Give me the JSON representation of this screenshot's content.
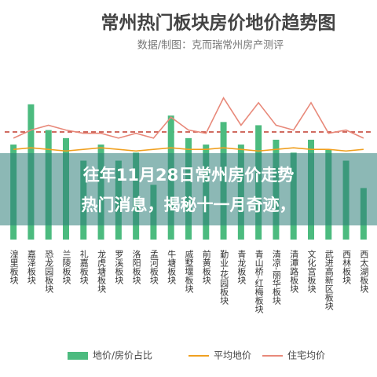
{
  "chart_data": {
    "type": "bar",
    "title": "常州热门板块房价地价趋势图",
    "subtitle": "数据/制图：克而瑞常州房产测评",
    "overlay_lines": [
      "往年11月28日常州房价走势",
      "热门消息，揭秘十一月奇迹，"
    ],
    "categories": [
      "湟里板块",
      "嘉泽板块",
      "恐龙园板块",
      "兰陵板块",
      "礼嘉板块",
      "龙虎塘板块",
      "罗溪板块",
      "洛阳板块",
      "孟河板块",
      "牛塘板块",
      "戚墅堰板块",
      "前黄板块",
      "勤业-花园板块",
      "青龙板块",
      "青山桥-红梅板块",
      "清凉-丽华板块",
      "清潭路板块",
      "文化宫板块",
      "武进高新区板块",
      "西林板块",
      "西太湖板块"
    ],
    "series": [
      {
        "name": "地价/房价占比",
        "color": "#4cbb7f",
        "kind": "bar",
        "values": [
          59,
          84,
          68,
          63,
          49,
          59,
          49,
          54,
          34,
          77,
          63,
          59,
          73,
          59,
          71,
          62,
          54,
          62,
          56,
          49,
          32
        ]
      },
      {
        "name": "平均地价",
        "color": "#f0a020",
        "kind": "line",
        "values": [
          56,
          57,
          56,
          55,
          56,
          57,
          56,
          55,
          56,
          57,
          56,
          56,
          57,
          56,
          55,
          56,
          57,
          56,
          56,
          55,
          56
        ]
      },
      {
        "name": "住宅均价",
        "color": "#e8897a",
        "kind": "line",
        "values": [
          63,
          68,
          71,
          68,
          66,
          66,
          63,
          66,
          63,
          76,
          68,
          66,
          88,
          71,
          85,
          71,
          68,
          85,
          66,
          68,
          63
        ]
      }
    ],
    "ylim": [
      0,
      100
    ]
  }
}
